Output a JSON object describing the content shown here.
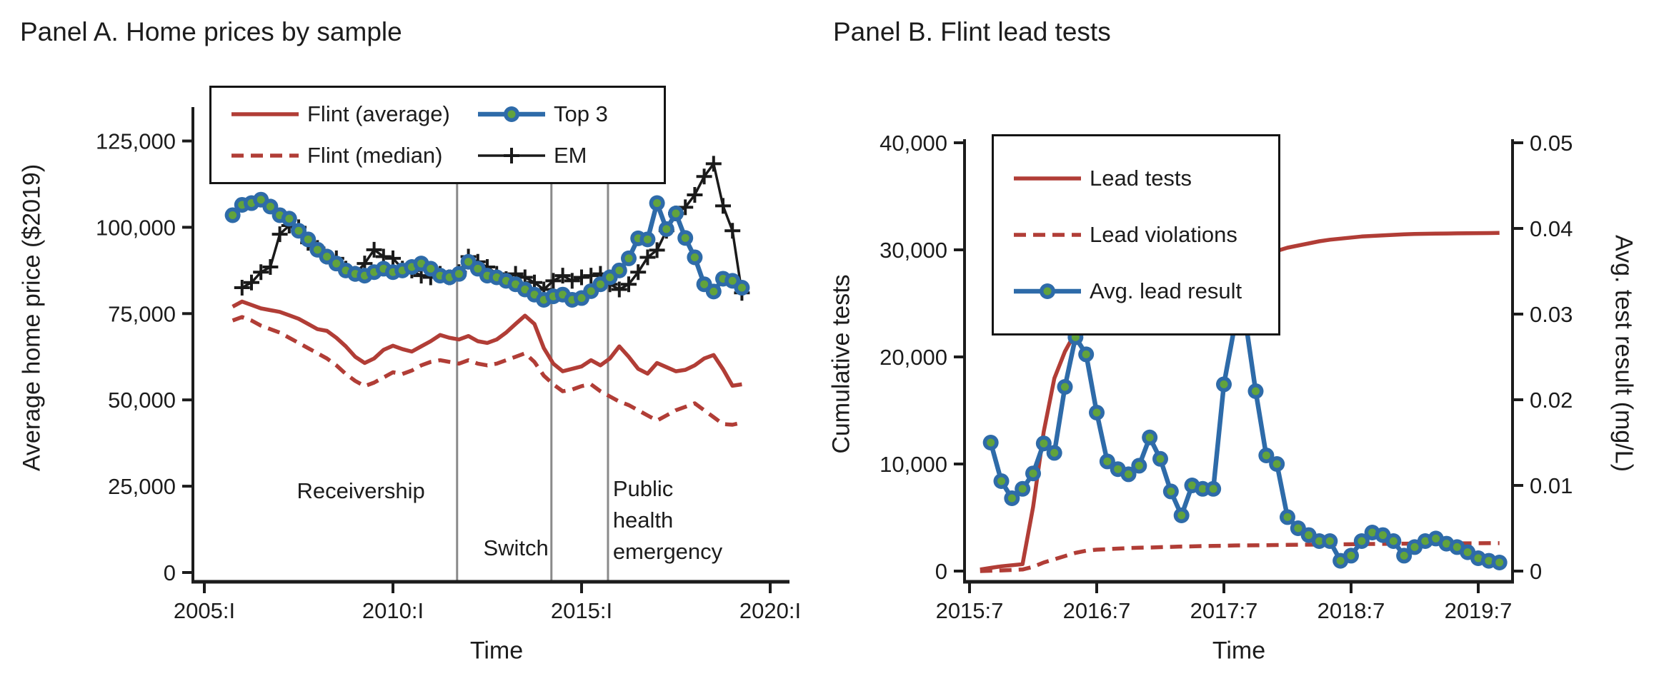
{
  "colors": {
    "red": "#b13d36",
    "blue": "#2e6ba9",
    "marker_fill_green": "#62a33c",
    "series_black": "#1a1a1a",
    "event_line_gray": "#8a8a8a",
    "text": "#1c1c1c",
    "axis": "#1c1c1c",
    "legend_border": "#141414",
    "background": "#ffffff"
  },
  "chart_data": [
    {
      "type": "line",
      "panel": "A",
      "title": "Panel A. Home prices by sample",
      "xlabel": "Time",
      "ylabel": "Average home price ($2019)",
      "xlim": [
        2004.7,
        2020.5
      ],
      "ylim": [
        0,
        135000
      ],
      "grid": false,
      "legend_position": "top-inside",
      "xticks": [
        {
          "v": 2005,
          "label": "2005:I"
        },
        {
          "v": 2010,
          "label": "2010:I"
        },
        {
          "v": 2015,
          "label": "2015:I"
        },
        {
          "v": 2020,
          "label": "2020:I"
        }
      ],
      "yticks": [
        {
          "v": 0,
          "label": "0"
        },
        {
          "v": 25000,
          "label": "25,000"
        },
        {
          "v": 50000,
          "label": "50,000"
        },
        {
          "v": 75000,
          "label": "75,000"
        },
        {
          "v": 100000,
          "label": "100,000"
        },
        {
          "v": 125000,
          "label": "125,000"
        }
      ],
      "event_lines": [
        {
          "t": 2011.7,
          "name": "receivership"
        },
        {
          "t": 2014.2,
          "name": "switch"
        },
        {
          "t": 2015.7,
          "name": "public-health-emergency"
        }
      ],
      "annotations": [
        {
          "text": "Receivership",
          "t": 2009.15,
          "v": 23500,
          "align": "center"
        },
        {
          "text": "Switch",
          "t": 2013.26,
          "v": 7000,
          "align": "center"
        },
        {
          "text": "Public health emergency",
          "t": 2015.83,
          "v": 15000,
          "align": "left"
        }
      ],
      "series": [
        {
          "name": "Flint (average)",
          "color": "red",
          "style": "solid",
          "marker": null,
          "x_start": 2005.75,
          "x_step": 0.25,
          "values": [
            77000,
            78500,
            77500,
            76500,
            76000,
            75500,
            74500,
            73500,
            72000,
            70500,
            70000,
            68000,
            65500,
            62500,
            60700,
            62000,
            64500,
            65700,
            64700,
            64000,
            65500,
            67000,
            68800,
            68000,
            67500,
            68500,
            67000,
            66500,
            67500,
            69500,
            72000,
            74400,
            72000,
            65000,
            60500,
            58300,
            59000,
            59700,
            61500,
            60000,
            62000,
            65500,
            62500,
            59000,
            57600,
            60700,
            59500,
            58300,
            58700,
            60000,
            62000,
            63000,
            58900,
            54100,
            54500
          ]
        },
        {
          "name": "Flint (median)",
          "color": "red",
          "style": "dashed",
          "marker": null,
          "x_start": 2005.75,
          "x_step": 0.25,
          "values": [
            73000,
            74000,
            73000,
            71500,
            70500,
            69500,
            68000,
            66500,
            65000,
            63500,
            62000,
            60000,
            57500,
            55500,
            54000,
            55000,
            56500,
            58000,
            57500,
            58500,
            60000,
            61000,
            61500,
            61000,
            60500,
            61500,
            60500,
            60000,
            60500,
            61500,
            62500,
            63500,
            61000,
            57000,
            54500,
            52500,
            53000,
            54000,
            54500,
            52500,
            51000,
            49500,
            48500,
            47000,
            45500,
            44000,
            45500,
            47000,
            48000,
            49000,
            47000,
            45000,
            43000,
            42800,
            43400
          ]
        },
        {
          "name": "Top 3",
          "color": "blue",
          "style": "solid",
          "marker": "circle-dot",
          "x_start": 2005.75,
          "x_step": 0.25,
          "values": [
            103500,
            106500,
            107000,
            108000,
            106000,
            103500,
            102500,
            99000,
            96500,
            93500,
            91500,
            89500,
            87500,
            86500,
            86000,
            87000,
            88000,
            87000,
            87500,
            88500,
            89500,
            88000,
            86000,
            85500,
            86500,
            90000,
            88000,
            86000,
            85500,
            84500,
            83500,
            82000,
            80500,
            79000,
            80000,
            80500,
            79000,
            79500,
            81500,
            83500,
            85500,
            87500,
            91000,
            96800,
            96500,
            107000,
            99500,
            104000,
            96900,
            91300,
            83500,
            81400,
            85100,
            84500,
            82500
          ]
        },
        {
          "name": "EM",
          "color": "series_black",
          "style": "solid",
          "marker": "plus",
          "x_start": 2005.75,
          "x_step": 0.25,
          "values": [
            null,
            82500,
            84000,
            87000,
            88500,
            98000,
            100500,
            100000,
            95500,
            94000,
            91500,
            91000,
            88000,
            86500,
            89500,
            93500,
            91500,
            91000,
            88000,
            87500,
            86000,
            85500,
            86500,
            85500,
            87000,
            91500,
            90000,
            88500,
            86500,
            85000,
            86500,
            85500,
            84000,
            82000,
            84500,
            86000,
            84500,
            85500,
            86000,
            86500,
            83500,
            82000,
            83500,
            87000,
            91300,
            93400,
            99000,
            104000,
            105800,
            109400,
            114700,
            118400,
            106200,
            99000,
            81000
          ]
        }
      ]
    },
    {
      "type": "line",
      "panel": "B",
      "title": "Panel B. Flint lead tests",
      "xlabel": "Time",
      "ylabel_left": "Cumulative tests",
      "ylabel_right": "Avg. test result (mg/L)",
      "xlim": [
        2015.46,
        2019.77
      ],
      "ylim_left": [
        0,
        41000
      ],
      "ylim_right": [
        0,
        0.05125
      ],
      "grid": false,
      "legend_position": "top-left-inside",
      "xticks": [
        {
          "v": 2015.5,
          "label": "2015:7"
        },
        {
          "v": 2016.5,
          "label": "2016:7"
        },
        {
          "v": 2017.5,
          "label": "2017:7"
        },
        {
          "v": 2018.5,
          "label": "2018:7"
        },
        {
          "v": 2019.5,
          "label": "2019:7"
        }
      ],
      "yticks_left": [
        {
          "v": 0,
          "label": "0"
        },
        {
          "v": 10000,
          "label": "10,000"
        },
        {
          "v": 20000,
          "label": "20,000"
        },
        {
          "v": 30000,
          "label": "30,000"
        },
        {
          "v": 40000,
          "label": "40,000"
        }
      ],
      "yticks_right": [
        {
          "v": 0,
          "label": "0"
        },
        {
          "v": 0.01,
          "label": "0.01"
        },
        {
          "v": 0.02,
          "label": "0.02"
        },
        {
          "v": 0.03,
          "label": "0.03"
        },
        {
          "v": 0.04,
          "label": "0.04"
        },
        {
          "v": 0.05,
          "label": "0.05"
        }
      ],
      "series": [
        {
          "name": "Lead tests",
          "color": "red",
          "style": "solid",
          "marker": null,
          "axis": "left",
          "x_start": 2015.5833,
          "x_step": 0.083333,
          "values": [
            150,
            300,
            450,
            550,
            650,
            6000,
            13000,
            18000,
            20500,
            22300,
            23000,
            23600,
            24100,
            24700,
            25100,
            25400,
            25600,
            26000,
            26500,
            27100,
            27500,
            27900,
            28200,
            28600,
            28900,
            29200,
            29500,
            29700,
            29900,
            30200,
            30400,
            30600,
            30800,
            30950,
            31050,
            31150,
            31250,
            31300,
            31350,
            31400,
            31450,
            31480,
            31500,
            31520,
            31530,
            31540,
            31550,
            31560,
            31570,
            31580
          ]
        },
        {
          "name": "Lead violations",
          "color": "red",
          "style": "dashed",
          "marker": null,
          "axis": "left",
          "x_start": 2015.5833,
          "x_step": 0.083333,
          "values": [
            0,
            30,
            60,
            100,
            150,
            400,
            800,
            1100,
            1400,
            1700,
            1900,
            2000,
            2050,
            2100,
            2150,
            2180,
            2200,
            2230,
            2260,
            2290,
            2310,
            2330,
            2350,
            2370,
            2390,
            2400,
            2410,
            2420,
            2430,
            2450,
            2460,
            2470,
            2480,
            2490,
            2500,
            2510,
            2520,
            2530,
            2540,
            2550,
            2560,
            2570,
            2575,
            2580,
            2585,
            2590,
            2595,
            2600,
            2605,
            2610
          ]
        },
        {
          "name": "Avg. lead result",
          "color": "blue",
          "style": "solid",
          "marker": "circle-dot",
          "axis": "right",
          "x_start": 2015.6667,
          "x_step": 0.083333,
          "values": [
            0.015,
            0.0105,
            0.0085,
            0.0096,
            0.0114,
            0.0149,
            0.0138,
            0.0215,
            0.0273,
            0.0253,
            0.0185,
            0.0128,
            0.0119,
            0.0113,
            0.0123,
            0.0156,
            0.0131,
            0.0093,
            0.0065,
            0.01,
            0.0096,
            0.0096,
            0.0218,
            0.0285,
            0.0295,
            0.021,
            0.0135,
            0.0125,
            0.0063,
            0.005,
            0.0042,
            0.0035,
            0.0035,
            0.0012,
            0.0018,
            0.0035,
            0.0045,
            0.0042,
            0.0035,
            0.0018,
            0.0028,
            0.0035,
            0.0038,
            0.0032,
            0.0028,
            0.0022,
            0.0015,
            0.0012,
            0.001
          ]
        }
      ]
    }
  ]
}
